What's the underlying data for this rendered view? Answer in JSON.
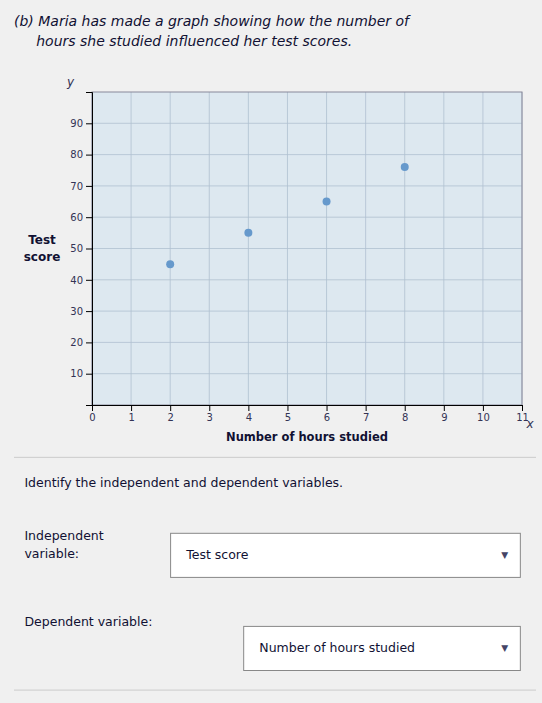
{
  "chart_data": {
    "type": "scatter",
    "title": [
      "(b) Maria has made a graph showing how the number of",
      "     hours she studied influenced her test scores."
    ],
    "x_label": "Number of hours studied",
    "y_label": "Test\nscore",
    "x": [
      2,
      4,
      6,
      8
    ],
    "values": [
      45,
      55,
      65,
      76
    ],
    "color": "#6699cc",
    "xlim": [
      0,
      11
    ],
    "ylim": [
      0,
      100
    ],
    "xticks": [
      0,
      1,
      2,
      3,
      4,
      5,
      6,
      7,
      8,
      9,
      10,
      11
    ],
    "yticks": [
      10,
      20,
      30,
      40,
      50,
      60,
      70,
      80,
      90
    ],
    "grid": true,
    "annotations": [
      {
        "text": "y"
      },
      {
        "text": "x"
      },
      {
        "text": "Identify the independent and dependent variables."
      },
      {
        "text": "Independent\nvariable:"
      },
      {
        "text": "Test score"
      },
      {
        "text": "▼"
      },
      {
        "text": "Dependent variable:"
      },
      {
        "text": "Number of hours studied"
      },
      {
        "text": "▼"
      }
    ]
  }
}
